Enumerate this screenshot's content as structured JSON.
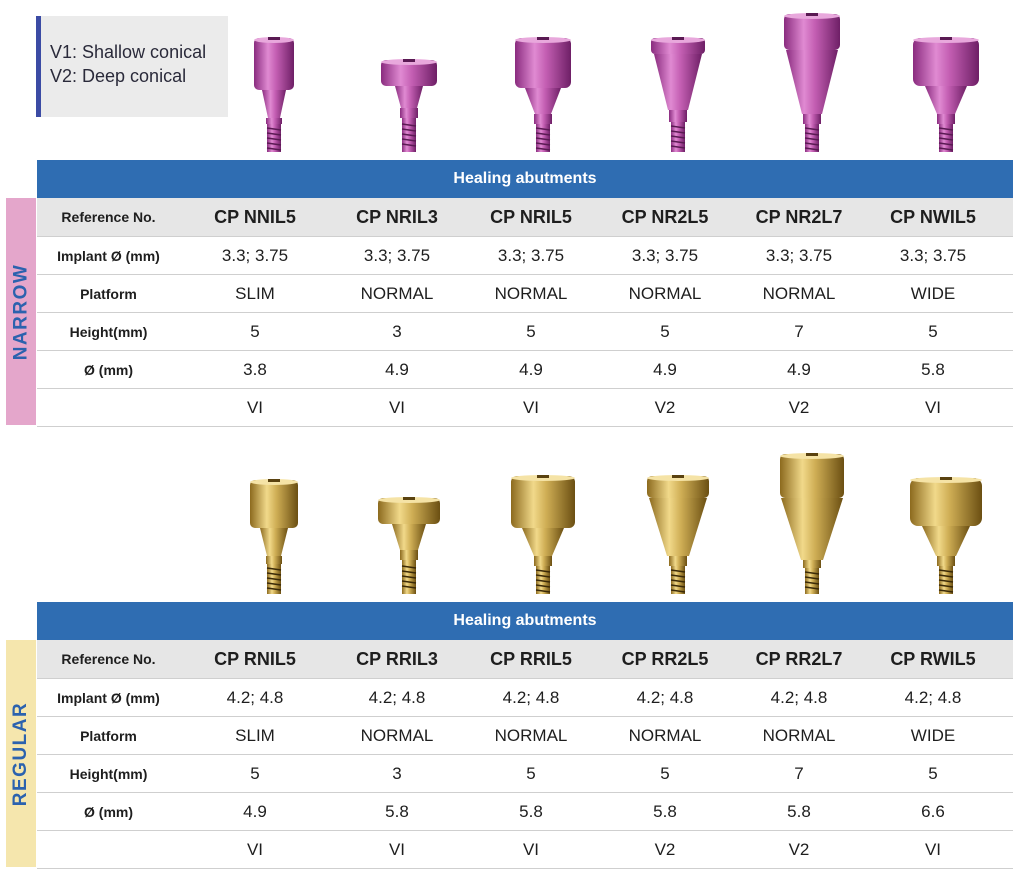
{
  "legend": {
    "v1": "V1: Shallow conical",
    "v2": "V2: Deep conical"
  },
  "colors": {
    "header_bar": "#2f6db2",
    "side_text": "#2b62ae",
    "narrow_side": "#e4a6cb",
    "regular_side": "#f5e6ad",
    "pink_abutment": "#c968b8",
    "gold_abutment": "#c9a94e"
  },
  "narrow": {
    "side_label": "NARROW",
    "header": "Healing abutments",
    "row_labels": {
      "ref": "Reference No.",
      "implant": "Implant Ø (mm)",
      "platform": "Platform",
      "height": "Height(mm)",
      "diameter": "Ø (mm)",
      "type": ""
    },
    "columns": [
      {
        "ref": "CP NNIL5",
        "implant": "3.3; 3.75",
        "platform": "SLIM",
        "height": "5",
        "diameter": "3.8",
        "type": "VI"
      },
      {
        "ref": "CP NRIL3",
        "implant": "3.3; 3.75",
        "platform": "NORMAL",
        "height": "3",
        "diameter": "4.9",
        "type": "VI"
      },
      {
        "ref": "CP NRIL5",
        "implant": "3.3; 3.75",
        "platform": "NORMAL",
        "height": "5",
        "diameter": "4.9",
        "type": "VI"
      },
      {
        "ref": "CP NR2L5",
        "implant": "3.3; 3.75",
        "platform": "NORMAL",
        "height": "5",
        "diameter": "4.9",
        "type": "V2"
      },
      {
        "ref": "CP NR2L7",
        "implant": "3.3; 3.75",
        "platform": "NORMAL",
        "height": "7",
        "diameter": "4.9",
        "type": "V2"
      },
      {
        "ref": "CP NWIL5",
        "implant": "3.3; 3.75",
        "platform": "WIDE",
        "height": "5",
        "diameter": "5.8",
        "type": "VI"
      }
    ]
  },
  "regular": {
    "side_label": "REGULAR",
    "header": "Healing abutments",
    "row_labels": {
      "ref": "Reference No.",
      "implant": "Implant Ø (mm)",
      "platform": "Platform",
      "height": "Height(mm)",
      "diameter": "Ø (mm)",
      "type": ""
    },
    "columns": [
      {
        "ref": "CP RNIL5",
        "implant": "4.2; 4.8",
        "platform": "SLIM",
        "height": "5",
        "diameter": "4.9",
        "type": "VI"
      },
      {
        "ref": "CP RRIL3",
        "implant": "4.2; 4.8",
        "platform": "NORMAL",
        "height": "3",
        "diameter": "5.8",
        "type": "VI"
      },
      {
        "ref": "CP RRIL5",
        "implant": "4.2; 4.8",
        "platform": "NORMAL",
        "height": "5",
        "diameter": "5.8",
        "type": "VI"
      },
      {
        "ref": "CP RR2L5",
        "implant": "4.2; 4.8",
        "platform": "NORMAL",
        "height": "5",
        "diameter": "5.8",
        "type": "V2"
      },
      {
        "ref": "CP RR2L7",
        "implant": "4.2; 4.8",
        "platform": "NORMAL",
        "height": "7",
        "diameter": "5.8",
        "type": "V2"
      },
      {
        "ref": "CP RWIL5",
        "implant": "4.2; 4.8",
        "platform": "WIDE",
        "height": "5",
        "diameter": "6.6",
        "type": "VI"
      }
    ]
  }
}
